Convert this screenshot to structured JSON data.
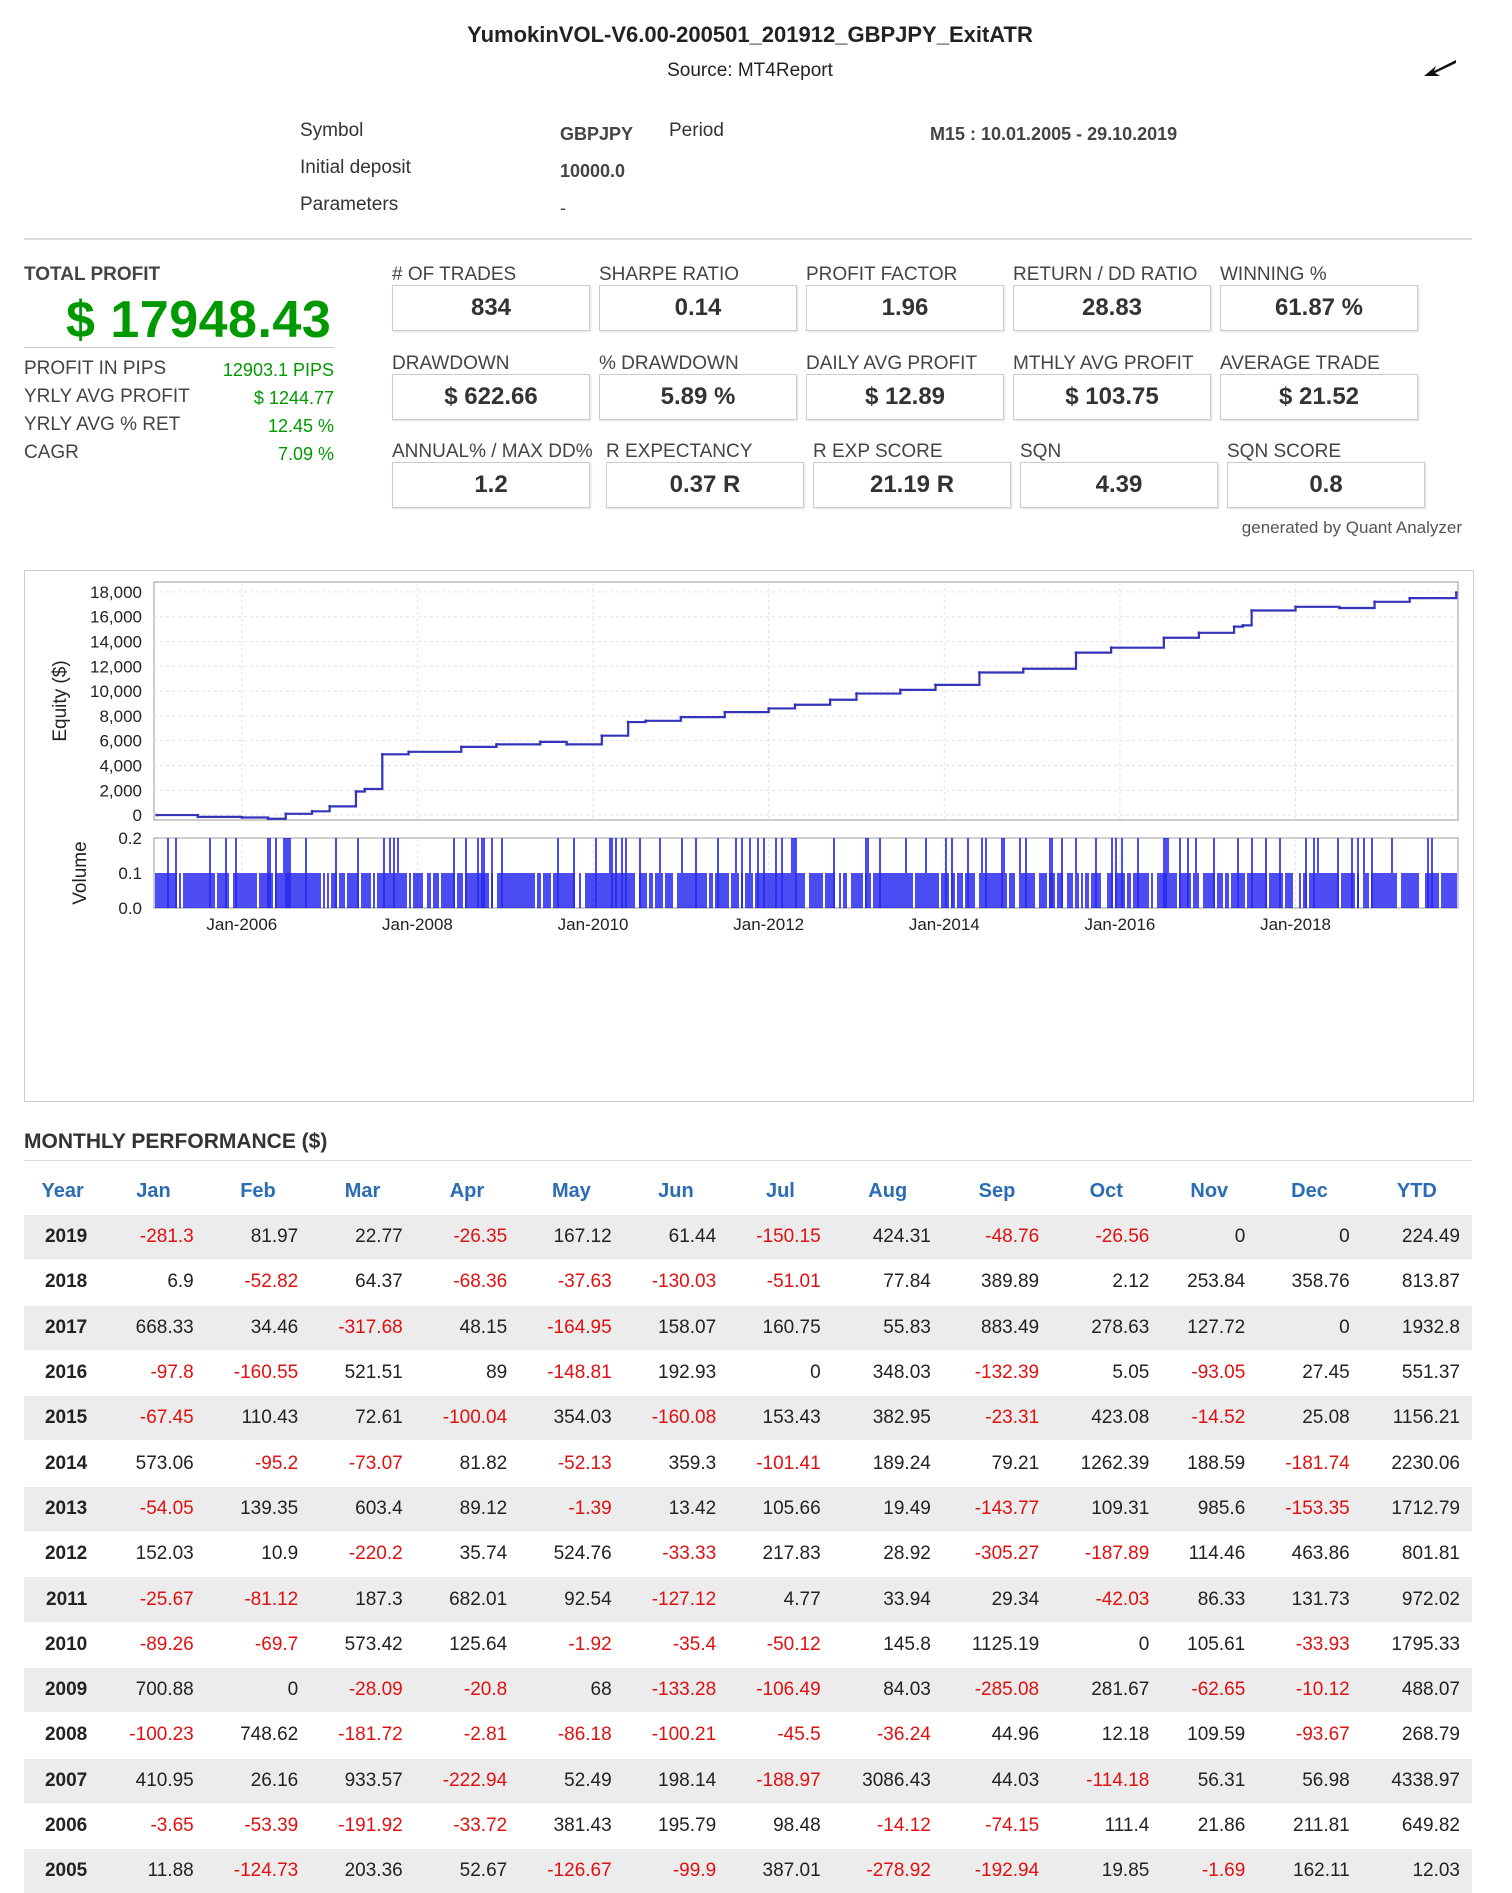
{
  "header": {
    "title": "YumokinVOL-V6.00-200501_201912_GBPJPY_ExitATR",
    "source": "Source: MT4Report"
  },
  "info": {
    "symbol_label": "Symbol",
    "symbol_value": "GBPJPY",
    "period_label": "Period",
    "period_value": "M15 : 10.01.2005 - 29.10.2019",
    "deposit_label": "Initial deposit",
    "deposit_value": "10000.0",
    "params_label": "Parameters",
    "params_value": "-"
  },
  "summary": {
    "total_profit_label": "TOTAL PROFIT",
    "total_profit_value": "$ 17948.43",
    "side": [
      {
        "label": "PROFIT IN PIPS",
        "value": "12903.1 PIPS"
      },
      {
        "label": "YRLY AVG PROFIT",
        "value": "$ 1244.77"
      },
      {
        "label": "YRLY AVG % RET",
        "value": "12.45 %"
      },
      {
        "label": "CAGR",
        "value": "7.09 %"
      }
    ]
  },
  "stats": {
    "row1": [
      {
        "label": "# OF TRADES",
        "value": "834"
      },
      {
        "label": "SHARPE RATIO",
        "value": "0.14"
      },
      {
        "label": "PROFIT FACTOR",
        "value": "1.96"
      },
      {
        "label": "RETURN / DD RATIO",
        "value": "28.83"
      },
      {
        "label": "WINNING %",
        "value": "61.87 %"
      }
    ],
    "row2": [
      {
        "label": "DRAWDOWN",
        "value": "$ 622.66"
      },
      {
        "label": "% DRAWDOWN",
        "value": "5.89 %"
      },
      {
        "label": "DAILY AVG PROFIT",
        "value": "$ 12.89"
      },
      {
        "label": "MTHLY AVG PROFIT",
        "value": "$ 103.75"
      },
      {
        "label": "AVERAGE TRADE",
        "value": "$ 21.52"
      }
    ],
    "row3": [
      {
        "label": "ANNUAL% / MAX DD%",
        "value": "1.2"
      },
      {
        "label": "R EXPECTANCY",
        "value": "0.37 R"
      },
      {
        "label": "R EXP SCORE",
        "value": "21.19 R"
      },
      {
        "label": "SQN",
        "value": "4.39"
      },
      {
        "label": "SQN SCORE",
        "value": "0.8"
      }
    ],
    "generated": "generated by Quant Analyzer"
  },
  "chart_data": {
    "type": "line",
    "ylabel": "Equity ($)",
    "ylim": [
      -400,
      18800
    ],
    "yticks": [
      "18,000",
      "16,000",
      "14,000",
      "12,000",
      "10,000",
      "8,000",
      "6,000",
      "4,000",
      "2,000",
      "0"
    ],
    "x": [
      2005.03,
      2005.5,
      2006.0,
      2006.3,
      2006.5,
      2006.8,
      2007.0,
      2007.3,
      2007.4,
      2007.6,
      2007.9,
      2008.5,
      2008.9,
      2009.4,
      2009.7,
      2010.1,
      2010.4,
      2010.6,
      2011.0,
      2011.5,
      2012.0,
      2012.3,
      2012.7,
      2013.0,
      2013.5,
      2013.9,
      2014.4,
      2014.9,
      2015.5,
      2015.9,
      2016.5,
      2016.9,
      2017.3,
      2017.4,
      2017.5,
      2018.0,
      2018.5,
      2018.9,
      2019.3,
      2019.83
    ],
    "values": [
      0,
      -150,
      -200,
      -300,
      100,
      300,
      700,
      1900,
      2100,
      4900,
      5100,
      5500,
      5700,
      5900,
      5700,
      6400,
      7500,
      7600,
      7900,
      8300,
      8600,
      8900,
      9300,
      9800,
      10100,
      10500,
      11500,
      11800,
      13100,
      13500,
      14300,
      14700,
      15200,
      15300,
      16500,
      16800,
      16700,
      17200,
      17500,
      17950
    ],
    "volume": {
      "ylabel": "Volume",
      "yticks": [
        "0.2",
        "0.1",
        "0.0"
      ],
      "ylim": [
        0,
        0.2
      ]
    },
    "xtick_labels": [
      "Jan-2006",
      "Jan-2008",
      "Jan-2010",
      "Jan-2012",
      "Jan-2014",
      "Jan-2016",
      "Jan-2018"
    ],
    "xtick_values": [
      2006,
      2008,
      2010,
      2012,
      2014,
      2016,
      2018
    ],
    "xlim": [
      2005.0,
      2019.85
    ],
    "grid": true
  },
  "monthly": {
    "title": "MONTHLY PERFORMANCE ($)",
    "headers": [
      "Year",
      "Jan",
      "Feb",
      "Mar",
      "Apr",
      "May",
      "Jun",
      "Jul",
      "Aug",
      "Sep",
      "Oct",
      "Nov",
      "Dec",
      "YTD"
    ],
    "rows": [
      [
        "2019",
        "-281.3",
        "81.97",
        "22.77",
        "-26.35",
        "167.12",
        "61.44",
        "-150.15",
        "424.31",
        "-48.76",
        "-26.56",
        "0",
        "0",
        "224.49"
      ],
      [
        "2018",
        "6.9",
        "-52.82",
        "64.37",
        "-68.36",
        "-37.63",
        "-130.03",
        "-51.01",
        "77.84",
        "389.89",
        "2.12",
        "253.84",
        "358.76",
        "813.87"
      ],
      [
        "2017",
        "668.33",
        "34.46",
        "-317.68",
        "48.15",
        "-164.95",
        "158.07",
        "160.75",
        "55.83",
        "883.49",
        "278.63",
        "127.72",
        "0",
        "1932.8"
      ],
      [
        "2016",
        "-97.8",
        "-160.55",
        "521.51",
        "89",
        "-148.81",
        "192.93",
        "0",
        "348.03",
        "-132.39",
        "5.05",
        "-93.05",
        "27.45",
        "551.37"
      ],
      [
        "2015",
        "-67.45",
        "110.43",
        "72.61",
        "-100.04",
        "354.03",
        "-160.08",
        "153.43",
        "382.95",
        "-23.31",
        "423.08",
        "-14.52",
        "25.08",
        "1156.21"
      ],
      [
        "2014",
        "573.06",
        "-95.2",
        "-73.07",
        "81.82",
        "-52.13",
        "359.3",
        "-101.41",
        "189.24",
        "79.21",
        "1262.39",
        "188.59",
        "-181.74",
        "2230.06"
      ],
      [
        "2013",
        "-54.05",
        "139.35",
        "603.4",
        "89.12",
        "-1.39",
        "13.42",
        "105.66",
        "19.49",
        "-143.77",
        "109.31",
        "985.6",
        "-153.35",
        "1712.79"
      ],
      [
        "2012",
        "152.03",
        "10.9",
        "-220.2",
        "35.74",
        "524.76",
        "-33.33",
        "217.83",
        "28.92",
        "-305.27",
        "-187.89",
        "114.46",
        "463.86",
        "801.81"
      ],
      [
        "2011",
        "-25.67",
        "-81.12",
        "187.3",
        "682.01",
        "92.54",
        "-127.12",
        "4.77",
        "33.94",
        "29.34",
        "-42.03",
        "86.33",
        "131.73",
        "972.02"
      ],
      [
        "2010",
        "-89.26",
        "-69.7",
        "573.42",
        "125.64",
        "-1.92",
        "-35.4",
        "-50.12",
        "145.8",
        "1125.19",
        "0",
        "105.61",
        "-33.93",
        "1795.33"
      ],
      [
        "2009",
        "700.88",
        "0",
        "-28.09",
        "-20.8",
        "68",
        "-133.28",
        "-106.49",
        "84.03",
        "-285.08",
        "281.67",
        "-62.65",
        "-10.12",
        "488.07"
      ],
      [
        "2008",
        "-100.23",
        "748.62",
        "-181.72",
        "-2.81",
        "-86.18",
        "-100.21",
        "-45.5",
        "-36.24",
        "44.96",
        "12.18",
        "109.59",
        "-93.67",
        "268.79"
      ],
      [
        "2007",
        "410.95",
        "26.16",
        "933.57",
        "-222.94",
        "52.49",
        "198.14",
        "-188.97",
        "3086.43",
        "44.03",
        "-114.18",
        "56.31",
        "56.98",
        "4338.97"
      ],
      [
        "2006",
        "-3.65",
        "-53.39",
        "-191.92",
        "-33.72",
        "381.43",
        "195.79",
        "98.48",
        "-14.12",
        "-74.15",
        "111.4",
        "21.86",
        "211.81",
        "649.82"
      ],
      [
        "2005",
        "11.88",
        "-124.73",
        "203.36",
        "52.67",
        "-126.67",
        "-99.9",
        "387.01",
        "-278.92",
        "-192.94",
        "19.85",
        "-1.69",
        "162.11",
        "12.03"
      ]
    ]
  },
  "colors": {
    "positive": "#009900",
    "negative": "#e01010",
    "header": "#2a6db5",
    "line": "#3333bb",
    "volume": "#0000ee"
  }
}
